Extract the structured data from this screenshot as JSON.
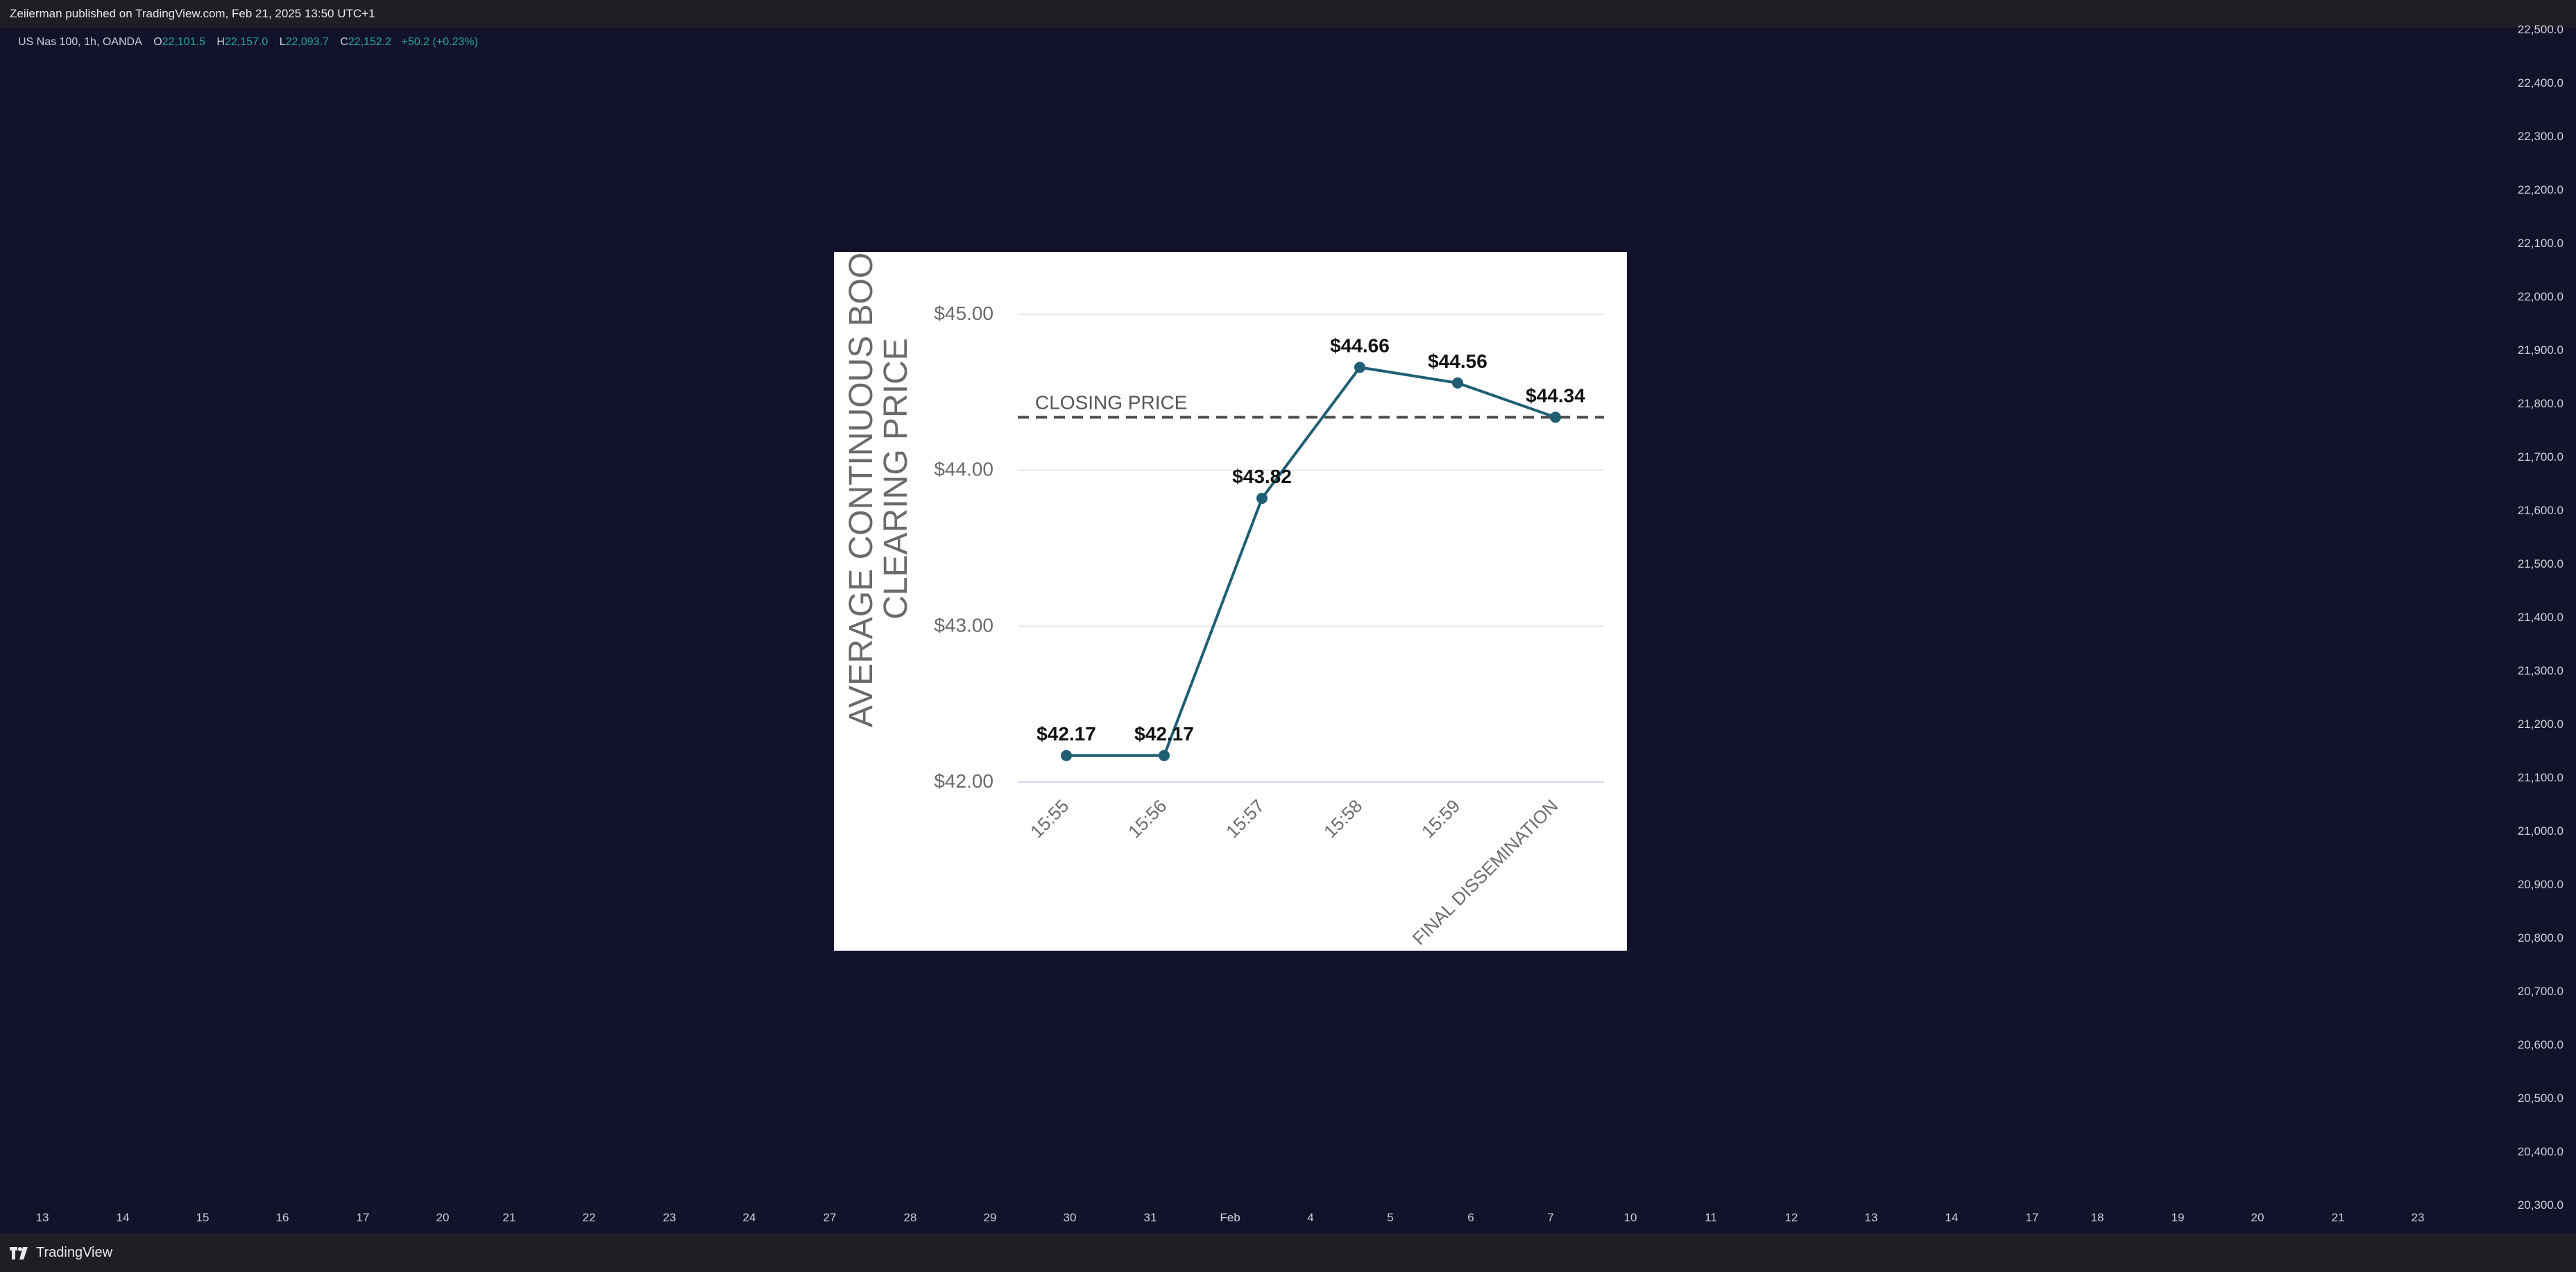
{
  "header": {
    "published_text": "Zeiierman published on TradingView.com, Feb 21, 2025 13:50 UTC+1"
  },
  "symbol_info": {
    "name": "US Nas 100, 1h, OANDA",
    "open_label": "O",
    "open": "22,101.5",
    "high_label": "H",
    "high": "22,157.0",
    "low_label": "L",
    "low": "22,093.7",
    "close_label": "C",
    "close": "22,152.2",
    "change": "+50.2 (+0.23%)"
  },
  "price_axis": {
    "ticks": [
      "22,500.0",
      "22,400.0",
      "22,300.0",
      "22,200.0",
      "22,100.0",
      "22,000.0",
      "21,900.0",
      "21,800.0",
      "21,700.0",
      "21,600.0",
      "21,500.0",
      "21,400.0",
      "21,300.0",
      "21,200.0",
      "21,100.0",
      "21,000.0",
      "20,900.0",
      "20,800.0",
      "20,700.0",
      "20,600.0",
      "20,500.0",
      "20,400.0",
      "20,300.0"
    ]
  },
  "time_axis": {
    "ticks": [
      "13",
      "14",
      "15",
      "16",
      "17",
      "20",
      "21",
      "22",
      "23",
      "24",
      "27",
      "28",
      "29",
      "30",
      "31",
      "Feb",
      "4",
      "5",
      "6",
      "7",
      "10",
      "11",
      "12",
      "13",
      "14",
      "17",
      "18",
      "19",
      "20",
      "21",
      "23"
    ]
  },
  "footer": {
    "logo_text": "TradingView"
  },
  "colors": {
    "background": "#12122b",
    "bar": "#1e1e24",
    "line": "#1e5f74",
    "up": "#26a69a"
  },
  "chart_data": {
    "type": "line",
    "ylabel": "AVERAGE CONTINUOUS BOOK CLEARING PRICE",
    "ylabel_lines": [
      "AVERAGE CONTINUOUS BOOK",
      "CLEARING PRICE"
    ],
    "categories": [
      "15:55",
      "15:56",
      "15:57",
      "15:58",
      "15:59",
      "FINAL DISSEMINATION"
    ],
    "values": [
      42.17,
      42.17,
      43.82,
      44.66,
      44.56,
      44.34
    ],
    "data_labels": [
      "$42.17",
      "$42.17",
      "$43.82",
      "$44.66",
      "$44.56",
      "$44.34"
    ],
    "ylim": [
      42.0,
      45.0
    ],
    "yticks": [
      42.0,
      43.0,
      44.0,
      45.0
    ],
    "ytick_labels": [
      "$42.00",
      "$43.00",
      "$44.00",
      "$45.00"
    ],
    "reference_line": {
      "label": "CLOSING PRICE",
      "value": 44.34
    },
    "grid": true
  }
}
